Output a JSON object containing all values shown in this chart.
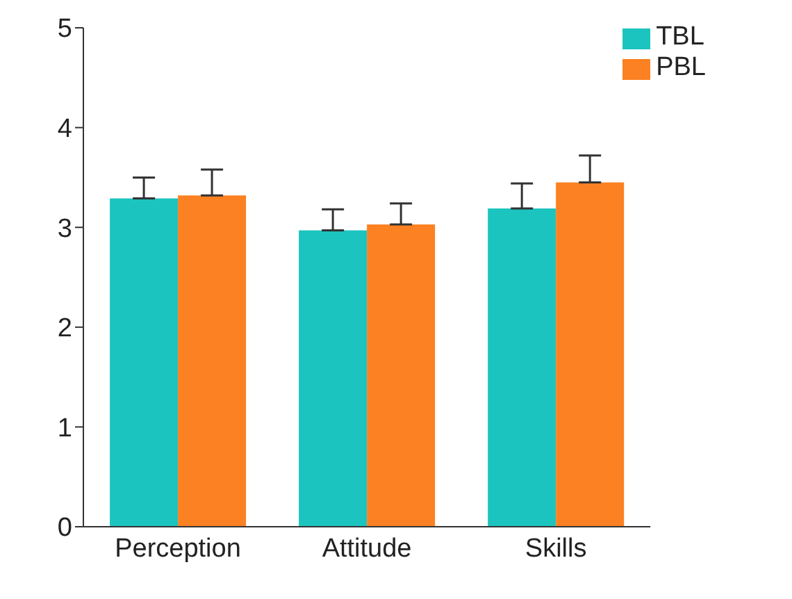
{
  "chart_data": {
    "type": "bar",
    "categories": [
      "Perception",
      "Attitude",
      "Skills"
    ],
    "series": [
      {
        "name": "TBL",
        "color": "#1cc4bf",
        "values": [
          3.29,
          2.97,
          3.19
        ],
        "errors": [
          [
            3.29,
            3.5
          ],
          [
            2.97,
            3.18
          ],
          [
            3.19,
            3.44
          ]
        ]
      },
      {
        "name": "PBL",
        "color": "#fb8122",
        "values": [
          3.32,
          3.03,
          3.45
        ],
        "errors": [
          [
            3.32,
            3.58
          ],
          [
            3.03,
            3.24
          ],
          [
            3.45,
            3.72
          ]
        ]
      }
    ],
    "ylim": [
      0,
      5
    ],
    "yticks": [
      0,
      1,
      2,
      3,
      4,
      5
    ],
    "grid": false,
    "legend": "top right"
  }
}
